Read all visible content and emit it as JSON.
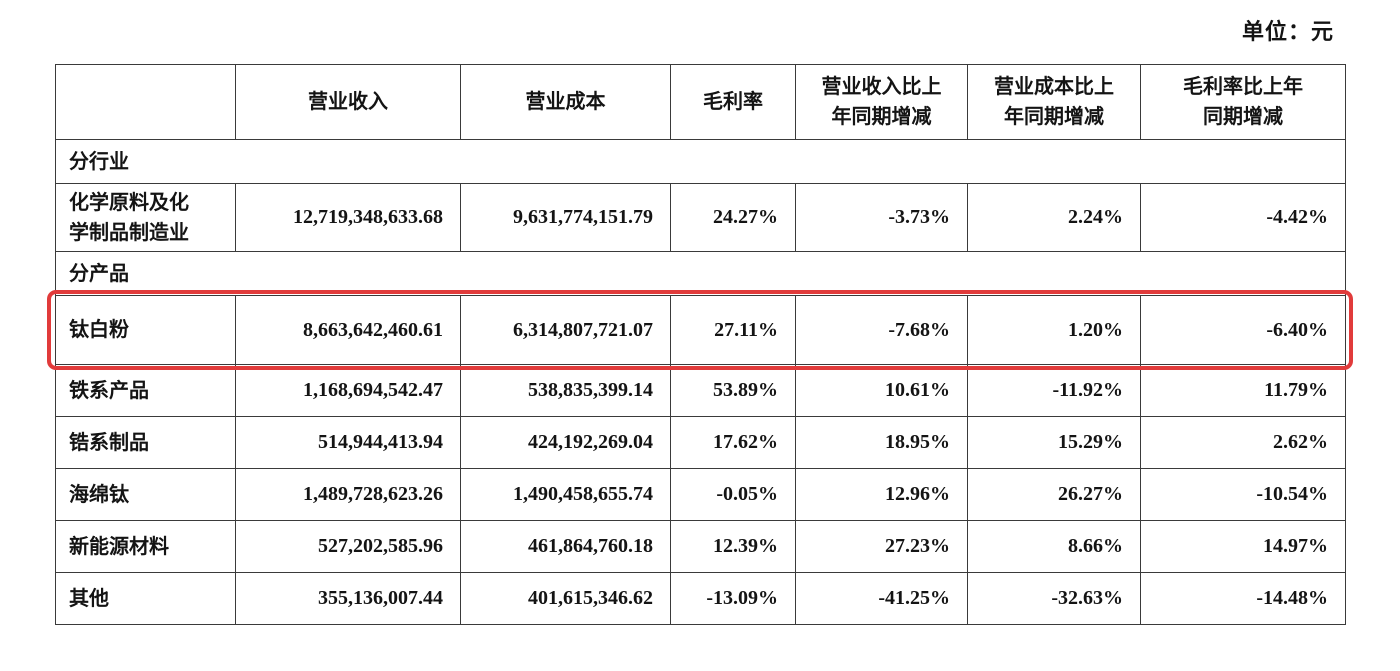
{
  "page": {
    "unit_label": "单位：元"
  },
  "table": {
    "highlight_color": "#e13b3b",
    "highlighted_row_label": "钛白粉",
    "headers": [
      "",
      "营业收入",
      "营业成本",
      "毛利率",
      "营业收入比上\n年同期增减",
      "营业成本比上\n年同期增减",
      "毛利率比上年\n同期增减"
    ],
    "rows": [
      {
        "type": "section",
        "label": "分行业"
      },
      {
        "type": "data",
        "tall": true,
        "label": "化学原料及化\n学制品制造业",
        "values": [
          "12,719,348,633.68",
          "9,631,774,151.79",
          "24.27%",
          "-3.73%",
          "2.24%",
          "-4.42%"
        ]
      },
      {
        "type": "section",
        "label": "分产品"
      },
      {
        "type": "data",
        "highlighted": true,
        "label": "钛白粉",
        "values": [
          "8,663,642,460.61",
          "6,314,807,721.07",
          "27.11%",
          "-7.68%",
          "1.20%",
          "-6.40%"
        ]
      },
      {
        "type": "data",
        "label": "铁系产品",
        "values": [
          "1,168,694,542.47",
          "538,835,399.14",
          "53.89%",
          "10.61%",
          "-11.92%",
          "11.79%"
        ]
      },
      {
        "type": "data",
        "label": "锆系制品",
        "values": [
          "514,944,413.94",
          "424,192,269.04",
          "17.62%",
          "18.95%",
          "15.29%",
          "2.62%"
        ]
      },
      {
        "type": "data",
        "label": "海绵钛",
        "values": [
          "1,489,728,623.26",
          "1,490,458,655.74",
          "-0.05%",
          "12.96%",
          "26.27%",
          "-10.54%"
        ]
      },
      {
        "type": "data",
        "label": "新能源材料",
        "values": [
          "527,202,585.96",
          "461,864,760.18",
          "12.39%",
          "27.23%",
          "8.66%",
          "14.97%"
        ]
      },
      {
        "type": "data",
        "label": "其他",
        "values": [
          "355,136,007.44",
          "401,615,346.62",
          "-13.09%",
          "-41.25%",
          "-32.63%",
          "-14.48%"
        ]
      }
    ]
  }
}
